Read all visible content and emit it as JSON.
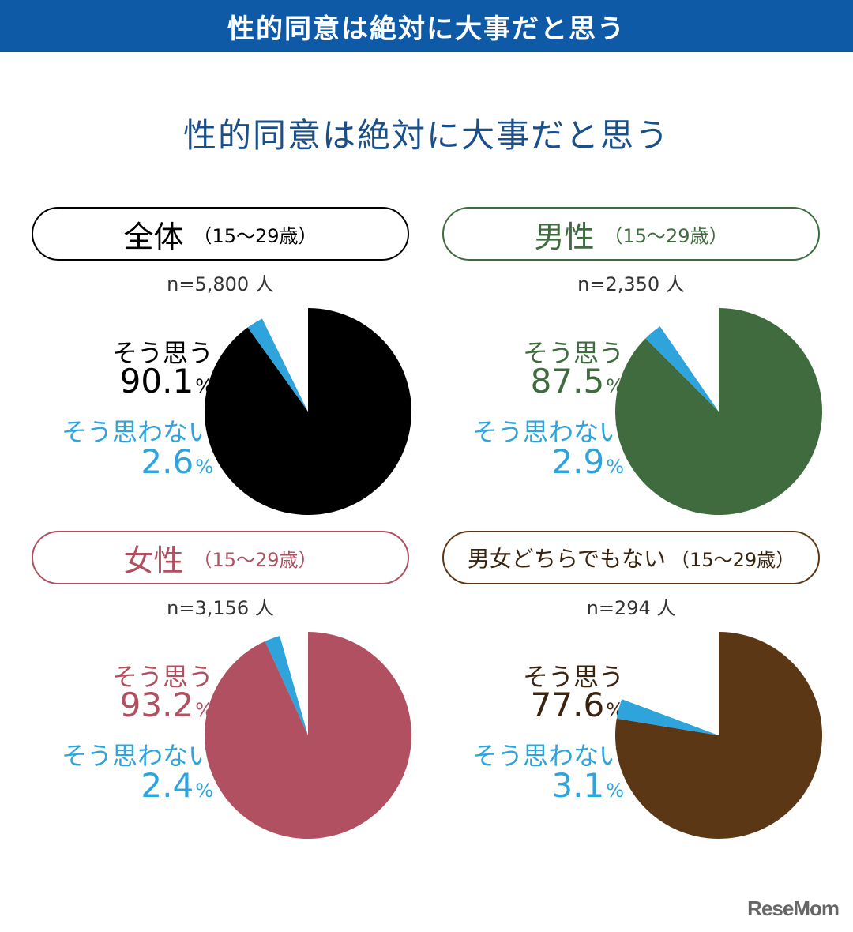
{
  "banner": "性的同意は絶対に大事だと思う",
  "title": "性的同意は絶対に大事だと思う",
  "logo": "ReseMom",
  "chart_data": [
    {
      "type": "pie",
      "group": "全体",
      "age_range": "（15〜29歳）",
      "n_label": "n=5,800 人",
      "agree_label": "そう思う",
      "agree_value": "90.1",
      "disagree_label": "そう思わない",
      "disagree_value": "2.6",
      "unit": "%",
      "slices": [
        {
          "name": "そう思う",
          "value": 90.1,
          "color": "#000000"
        },
        {
          "name": "そう思わない",
          "value": 2.6,
          "color": "#2fa4dc"
        },
        {
          "name": "other",
          "value": 7.3,
          "color": "#ffffff"
        }
      ],
      "color": "#000000",
      "label_color": "#000000"
    },
    {
      "type": "pie",
      "group": "男性",
      "age_range": "（15〜29歳）",
      "n_label": "n=2,350 人",
      "agree_label": "そう思う",
      "agree_value": "87.5",
      "disagree_label": "そう思わない",
      "disagree_value": "2.9",
      "unit": "%",
      "slices": [
        {
          "name": "そう思う",
          "value": 87.5,
          "color": "#3f6b3f"
        },
        {
          "name": "そう思わない",
          "value": 2.9,
          "color": "#2fa4dc"
        },
        {
          "name": "other",
          "value": 9.6,
          "color": "#ffffff"
        }
      ],
      "color": "#3f6b3f",
      "label_color": "#3f6b3f"
    },
    {
      "type": "pie",
      "group": "女性",
      "age_range": "（15〜29歳）",
      "n_label": "n=3,156 人",
      "agree_label": "そう思う",
      "agree_value": "93.2",
      "disagree_label": "そう思わない",
      "disagree_value": "2.4",
      "unit": "%",
      "slices": [
        {
          "name": "そう思う",
          "value": 93.2,
          "color": "#b05060"
        },
        {
          "name": "そう思わない",
          "value": 2.4,
          "color": "#2fa4dc"
        },
        {
          "name": "other",
          "value": 4.4,
          "color": "#ffffff"
        }
      ],
      "color": "#b05060",
      "label_color": "#b05060"
    },
    {
      "type": "pie",
      "group": "男女どちらでもない",
      "age_range": "（15〜29歳）",
      "n_label": "n=294 人",
      "agree_label": "そう思う",
      "agree_value": "77.6",
      "disagree_label": "そう思わない",
      "disagree_value": "3.1",
      "unit": "%",
      "slices": [
        {
          "name": "そう思う",
          "value": 77.6,
          "color": "#5c3715"
        },
        {
          "name": "そう思わない",
          "value": 3.1,
          "color": "#2fa4dc"
        },
        {
          "name": "other",
          "value": 19.3,
          "color": "#ffffff"
        }
      ],
      "color": "#5c3715",
      "label_color": "#3a2410"
    }
  ]
}
